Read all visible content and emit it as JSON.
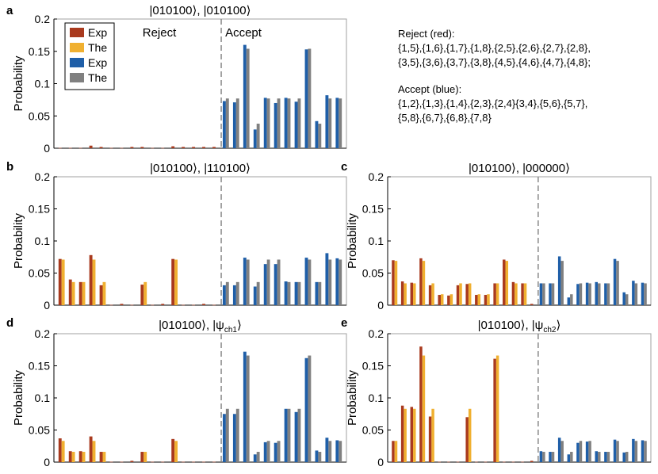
{
  "colors": {
    "reject_exp": "#a93a1e",
    "reject_the": "#f0b030",
    "accept_exp": "#1f5fa8",
    "accept_the": "#808080",
    "axis": "#000000",
    "divider": "#808080"
  },
  "legend": [
    {
      "label": "Exp",
      "color": "#a93a1e"
    },
    {
      "label": "The",
      "color": "#f0b030"
    },
    {
      "label": "Exp",
      "color": "#1f5fa8"
    },
    {
      "label": "The",
      "color": "#808080"
    }
  ],
  "region_labels": {
    "reject": "Reject",
    "accept": "Accept"
  },
  "notes": {
    "reject_heading": "Reject (red):",
    "reject_lines": [
      "{1,5},{1,6},{1,7},{1,8},{2,5},{2,6},{2,7},{2,8},",
      "{3,5},{3,6},{3,7},{3,8},{4,5},{4,6},{4,7},{4,8};"
    ],
    "accept_heading": "Accept (blue):",
    "accept_lines": [
      "{1,2},{1,3},{1,4},{2,3},{2,4}{3,4},{5,6},{5,7},",
      "{5,8},{6,7},{6,8},{7,8}"
    ]
  },
  "chart_data": [
    {
      "panel": "a",
      "type": "bar",
      "title_main": "|010100⟩, |010100⟩",
      "title_sub": "",
      "ylabel": "Probability",
      "ylim": [
        0,
        0.2
      ],
      "yticks": [
        "0",
        "0.05",
        "0.1",
        "0.15",
        "0.2"
      ],
      "series_names": [
        "Exp",
        "The"
      ],
      "reject": {
        "exp": [
          0.0005,
          0.0005,
          0.0005,
          0.004,
          0.002,
          0.0005,
          0.0005,
          0.002,
          0.002,
          0.0005,
          0.0005,
          0.003,
          0.002,
          0.002,
          0.002,
          0.002
        ],
        "the": [
          0,
          0,
          0,
          0,
          0,
          0,
          0,
          0,
          0,
          0,
          0,
          0,
          0,
          0,
          0,
          0
        ]
      },
      "accept": {
        "exp": [
          0.073,
          0.071,
          0.16,
          0.029,
          0.078,
          0.07,
          0.078,
          0.072,
          0.153,
          0.042,
          0.082,
          0.078
        ],
        "the": [
          0.077,
          0.077,
          0.154,
          0.038,
          0.077,
          0.077,
          0.077,
          0.077,
          0.154,
          0.038,
          0.077,
          0.077
        ]
      }
    },
    {
      "panel": "b",
      "type": "bar",
      "title_main": "|010100⟩, |110100⟩",
      "title_sub": "",
      "ylabel": "Probability",
      "ylim": [
        0,
        0.2
      ],
      "yticks": [
        "0",
        "0.05",
        "0.1",
        "0.15",
        "0.2"
      ],
      "series_names": [
        "Exp",
        "The"
      ],
      "reject": {
        "exp": [
          0.072,
          0.04,
          0.036,
          0.078,
          0.031,
          0.0005,
          0.002,
          0.0005,
          0.032,
          0.0005,
          0.002,
          0.072,
          0.0005,
          0.0005,
          0.002,
          0.0005
        ],
        "the": [
          0.071,
          0.036,
          0.036,
          0.071,
          0.036,
          0,
          0,
          0,
          0.036,
          0,
          0,
          0.071,
          0,
          0,
          0,
          0
        ]
      },
      "accept": {
        "exp": [
          0.031,
          0.031,
          0.074,
          0.029,
          0.064,
          0.064,
          0.037,
          0.036,
          0.074,
          0.036,
          0.081,
          0.073
        ],
        "the": [
          0.036,
          0.036,
          0.071,
          0.036,
          0.071,
          0.071,
          0.036,
          0.036,
          0.071,
          0.036,
          0.071,
          0.071
        ]
      }
    },
    {
      "panel": "c",
      "type": "bar",
      "title_main": "|010100⟩, |000000⟩",
      "title_sub": "",
      "ylabel": "Probability",
      "ylim": [
        0,
        0.2
      ],
      "yticks": [
        "0",
        "0.05",
        "0.1",
        "0.15",
        "0.2"
      ],
      "series_names": [
        "Exp",
        "The"
      ],
      "reject": {
        "exp": [
          0.07,
          0.037,
          0.035,
          0.073,
          0.031,
          0.016,
          0.015,
          0.031,
          0.033,
          0.016,
          0.016,
          0.034,
          0.071,
          0.036,
          0.034,
          0.002
        ],
        "the": [
          0.069,
          0.034,
          0.034,
          0.069,
          0.034,
          0.017,
          0.017,
          0.034,
          0.034,
          0.017,
          0.017,
          0.034,
          0.069,
          0.034,
          0.034,
          0
        ]
      },
      "accept": {
        "exp": [
          0.034,
          0.034,
          0.076,
          0.012,
          0.033,
          0.035,
          0.036,
          0.034,
          0.072,
          0.02,
          0.038,
          0.035
        ],
        "the": [
          0.034,
          0.034,
          0.069,
          0.017,
          0.034,
          0.034,
          0.034,
          0.034,
          0.069,
          0.017,
          0.034,
          0.034
        ]
      }
    },
    {
      "panel": "d",
      "type": "bar",
      "title_main": "|010100⟩, |ψ",
      "title_sub": "ch1",
      "ylabel": "Probability",
      "ylim": [
        0,
        0.2
      ],
      "yticks": [
        "0",
        "0.05",
        "0.1",
        "0.15",
        "0.2"
      ],
      "series_names": [
        "Exp",
        "The"
      ],
      "reject": {
        "exp": [
          0.037,
          0.017,
          0.017,
          0.04,
          0.016,
          0.0005,
          0.0005,
          0.002,
          0.016,
          0.0005,
          0.0005,
          0.036,
          0.0005,
          0.0005,
          0.0005,
          0.0005
        ],
        "the": [
          0.033,
          0.016,
          0.016,
          0.033,
          0.016,
          0,
          0,
          0,
          0.016,
          0,
          0,
          0.033,
          0,
          0,
          0,
          0
        ]
      },
      "accept": {
        "exp": [
          0.075,
          0.075,
          0.172,
          0.012,
          0.031,
          0.03,
          0.083,
          0.078,
          0.162,
          0.018,
          0.038,
          0.034
        ],
        "the": [
          0.083,
          0.083,
          0.166,
          0.016,
          0.033,
          0.033,
          0.083,
          0.083,
          0.166,
          0.016,
          0.033,
          0.033
        ]
      }
    },
    {
      "panel": "e",
      "type": "bar",
      "title_main": "|010100⟩, |ψ",
      "title_sub": "ch2",
      "ylabel": "Probability",
      "ylim": [
        0,
        0.2
      ],
      "yticks": [
        "0",
        "0.05",
        "0.1",
        "0.15",
        "0.2"
      ],
      "series_names": [
        "Exp",
        "The"
      ],
      "reject": {
        "exp": [
          0.033,
          0.088,
          0.086,
          0.18,
          0.071,
          0.0005,
          0.0005,
          0.0005,
          0.07,
          0.0005,
          0.0005,
          0.161,
          0.0005,
          0.0005,
          0.0005,
          0.002
        ],
        "the": [
          0.033,
          0.083,
          0.083,
          0.166,
          0.083,
          0,
          0,
          0,
          0.083,
          0,
          0,
          0.166,
          0,
          0,
          0,
          0
        ]
      },
      "accept": {
        "exp": [
          0.017,
          0.016,
          0.038,
          0.012,
          0.03,
          0.032,
          0.017,
          0.016,
          0.035,
          0.015,
          0.036,
          0.034
        ],
        "the": [
          0.016,
          0.016,
          0.033,
          0.016,
          0.033,
          0.033,
          0.016,
          0.016,
          0.033,
          0.016,
          0.033,
          0.033
        ]
      }
    }
  ]
}
